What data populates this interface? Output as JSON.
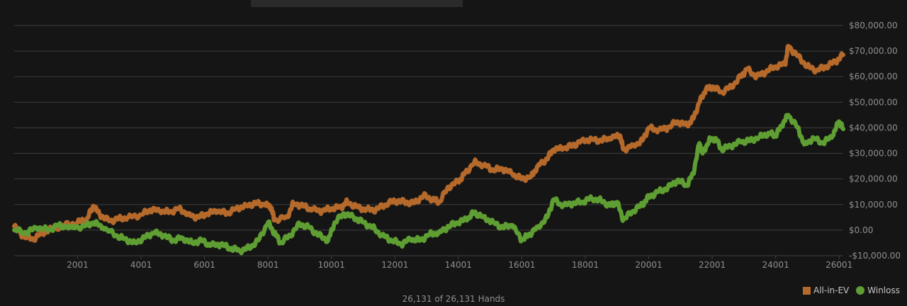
{
  "colors": {
    "background": "#151515",
    "grid": "#3d3d3d",
    "tick_text": "#8f8f8f",
    "all_in_ev": "#b5692a",
    "winloss": "#5e9e32"
  },
  "footer": {
    "hands_text": "26,131 of 26,131 Hands"
  },
  "legend": {
    "position": "bottom-right",
    "items": [
      {
        "label": "All-in-EV",
        "marker": "square",
        "color": "#b5692a"
      },
      {
        "label": "Winloss",
        "marker": "circle",
        "color": "#5e9e32"
      }
    ]
  },
  "chart_data": {
    "type": "line",
    "title": "",
    "xlabel": "",
    "ylabel": "",
    "xlim": [
      1,
      26131
    ],
    "ylim": [
      -10000,
      80000
    ],
    "grid": true,
    "y_axis_side": "right",
    "x_ticks": [
      2001,
      4001,
      6001,
      8001,
      10001,
      12001,
      14001,
      16001,
      18001,
      20001,
      22001,
      24001,
      26001
    ],
    "x_tick_labels": [
      "2001",
      "4001",
      "6001",
      "8001",
      "10001",
      "12001",
      "14001",
      "16001",
      "18001",
      "20001",
      "22001",
      "24001",
      "26001"
    ],
    "y_ticks": [
      -10000,
      0,
      10000,
      20000,
      30000,
      40000,
      50000,
      60000,
      70000,
      80000
    ],
    "y_tick_labels": [
      "-$10,000.00",
      "$0.00",
      "$10,000.00",
      "$20,000.00",
      "$30,000.00",
      "$40,000.00",
      "$50,000.00",
      "$60,000.00",
      "$70,000.00",
      "$80,000.00"
    ],
    "series": [
      {
        "name": "All-in-EV",
        "color": "#b5692a",
        "marker": "square",
        "points": [
          [
            1,
            1500
          ],
          [
            300,
            -2500
          ],
          [
            600,
            -3500
          ],
          [
            900,
            -1000
          ],
          [
            1200,
            500
          ],
          [
            1600,
            2000
          ],
          [
            2000,
            3000
          ],
          [
            2300,
            4500
          ],
          [
            2500,
            9500
          ],
          [
            2700,
            6000
          ],
          [
            3000,
            3500
          ],
          [
            3300,
            4500
          ],
          [
            3600,
            5000
          ],
          [
            4000,
            6000
          ],
          [
            4300,
            8000
          ],
          [
            4600,
            7500
          ],
          [
            4900,
            7000
          ],
          [
            5200,
            8500
          ],
          [
            5500,
            6000
          ],
          [
            5800,
            5000
          ],
          [
            6100,
            6500
          ],
          [
            6400,
            7500
          ],
          [
            6700,
            6500
          ],
          [
            7000,
            8500
          ],
          [
            7300,
            9500
          ],
          [
            7600,
            10500
          ],
          [
            7900,
            10000
          ],
          [
            8100,
            9000
          ],
          [
            8200,
            4000
          ],
          [
            8600,
            5000
          ],
          [
            8800,
            10500
          ],
          [
            9100,
            9500
          ],
          [
            9400,
            8000
          ],
          [
            9700,
            7500
          ],
          [
            10000,
            8500
          ],
          [
            10300,
            9000
          ],
          [
            10500,
            11000
          ],
          [
            10800,
            9000
          ],
          [
            11100,
            8000
          ],
          [
            11400,
            8000
          ],
          [
            11700,
            10000
          ],
          [
            12000,
            11500
          ],
          [
            12300,
            11000
          ],
          [
            12600,
            10500
          ],
          [
            12900,
            13500
          ],
          [
            13200,
            12000
          ],
          [
            13400,
            11000
          ],
          [
            13700,
            17000
          ],
          [
            14000,
            19000
          ],
          [
            14200,
            22000
          ],
          [
            14500,
            26500
          ],
          [
            14800,
            25500
          ],
          [
            15100,
            23500
          ],
          [
            15400,
            24000
          ],
          [
            15700,
            22000
          ],
          [
            16000,
            20000
          ],
          [
            16300,
            21000
          ],
          [
            16500,
            25000
          ],
          [
            16800,
            28000
          ],
          [
            17000,
            31500
          ],
          [
            17300,
            32000
          ],
          [
            17600,
            33000
          ],
          [
            17900,
            35000
          ],
          [
            18200,
            35500
          ],
          [
            18500,
            35000
          ],
          [
            18800,
            36000
          ],
          [
            19100,
            37000
          ],
          [
            19200,
            31500
          ],
          [
            19500,
            33000
          ],
          [
            19800,
            35000
          ],
          [
            20000,
            40000
          ],
          [
            20300,
            39000
          ],
          [
            20600,
            40000
          ],
          [
            20900,
            42500
          ],
          [
            21200,
            41000
          ],
          [
            21400,
            43500
          ],
          [
            21600,
            50000
          ],
          [
            21800,
            55000
          ],
          [
            22000,
            56000
          ],
          [
            22300,
            54000
          ],
          [
            22600,
            56000
          ],
          [
            22900,
            60000
          ],
          [
            23100,
            63000
          ],
          [
            23400,
            60000
          ],
          [
            23700,
            62000
          ],
          [
            24000,
            64000
          ],
          [
            24300,
            65000
          ],
          [
            24400,
            72000
          ],
          [
            24700,
            68000
          ],
          [
            25000,
            64000
          ],
          [
            25300,
            62500
          ],
          [
            25600,
            64000
          ],
          [
            25900,
            66000
          ],
          [
            26131,
            68500
          ]
        ]
      },
      {
        "name": "Winloss",
        "color": "#5e9e32",
        "marker": "circle",
        "points": [
          [
            1,
            0
          ],
          [
            400,
            -1000
          ],
          [
            700,
            1000
          ],
          [
            1100,
            0
          ],
          [
            1400,
            2000
          ],
          [
            1800,
            1000
          ],
          [
            2200,
            1500
          ],
          [
            2500,
            3000
          ],
          [
            2800,
            1000
          ],
          [
            3200,
            -2000
          ],
          [
            3500,
            -3500
          ],
          [
            3800,
            -5000
          ],
          [
            4100,
            -3000
          ],
          [
            4400,
            -1000
          ],
          [
            4700,
            -2000
          ],
          [
            5000,
            -4000
          ],
          [
            5300,
            -3000
          ],
          [
            5600,
            -5000
          ],
          [
            5900,
            -4000
          ],
          [
            6200,
            -6000
          ],
          [
            6500,
            -5500
          ],
          [
            6800,
            -7000
          ],
          [
            7100,
            -8000
          ],
          [
            7400,
            -7000
          ],
          [
            7700,
            -4000
          ],
          [
            8000,
            3000
          ],
          [
            8200,
            -1000
          ],
          [
            8400,
            -5000
          ],
          [
            8700,
            -2000
          ],
          [
            9000,
            2500
          ],
          [
            9300,
            1000
          ],
          [
            9600,
            -2000
          ],
          [
            9900,
            -4000
          ],
          [
            10100,
            3000
          ],
          [
            10400,
            6500
          ],
          [
            10700,
            5000
          ],
          [
            11000,
            3000
          ],
          [
            11300,
            1000
          ],
          [
            11600,
            -2000
          ],
          [
            11900,
            -4000
          ],
          [
            12200,
            -5500
          ],
          [
            12500,
            -3500
          ],
          [
            12800,
            -4000
          ],
          [
            13100,
            -1500
          ],
          [
            13400,
            -1000
          ],
          [
            13700,
            1500
          ],
          [
            14000,
            3000
          ],
          [
            14300,
            4500
          ],
          [
            14500,
            7000
          ],
          [
            14800,
            5000
          ],
          [
            15100,
            3000
          ],
          [
            15400,
            1000
          ],
          [
            15700,
            2000
          ],
          [
            16000,
            -4000
          ],
          [
            16200,
            -2000
          ],
          [
            16500,
            1000
          ],
          [
            16800,
            5000
          ],
          [
            17000,
            12000
          ],
          [
            17300,
            9500
          ],
          [
            17600,
            10500
          ],
          [
            17900,
            11000
          ],
          [
            18200,
            12500
          ],
          [
            18500,
            11500
          ],
          [
            18800,
            9500
          ],
          [
            19000,
            11000
          ],
          [
            19200,
            4000
          ],
          [
            19500,
            7500
          ],
          [
            19800,
            10000
          ],
          [
            20000,
            13000
          ],
          [
            20300,
            15000
          ],
          [
            20600,
            16500
          ],
          [
            20900,
            19500
          ],
          [
            21200,
            17500
          ],
          [
            21400,
            22000
          ],
          [
            21600,
            34000
          ],
          [
            21700,
            30000
          ],
          [
            21900,
            35000
          ],
          [
            22100,
            36000
          ],
          [
            22300,
            31500
          ],
          [
            22600,
            33000
          ],
          [
            22900,
            34500
          ],
          [
            23200,
            35000
          ],
          [
            23500,
            36500
          ],
          [
            23800,
            38000
          ],
          [
            24000,
            37000
          ],
          [
            24200,
            41000
          ],
          [
            24400,
            45000
          ],
          [
            24700,
            40000
          ],
          [
            24900,
            33500
          ],
          [
            25200,
            36000
          ],
          [
            25500,
            34000
          ],
          [
            25800,
            37000
          ],
          [
            26000,
            42500
          ],
          [
            26131,
            39500
          ]
        ]
      }
    ]
  }
}
